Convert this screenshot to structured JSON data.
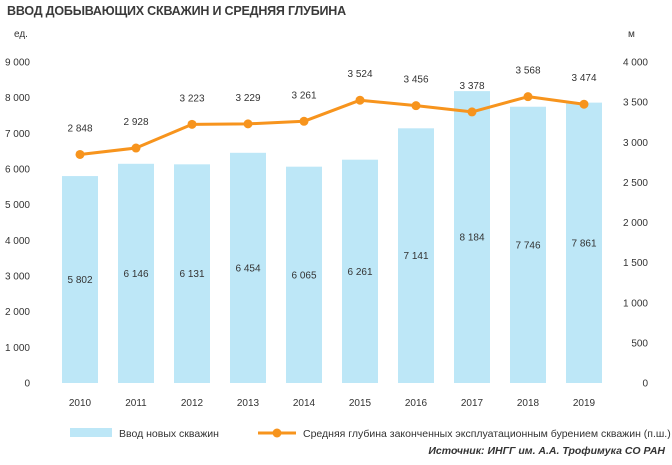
{
  "chart_data": {
    "type": "bar",
    "title": "ВВОД ДОБЫВАЮЩИХ СКВАЖИН И СРЕДНЯЯ ГЛУБИНА",
    "y_left_unit": "ед.",
    "y_right_unit": "м",
    "categories": [
      "2010",
      "2011",
      "2012",
      "2013",
      "2014",
      "2015",
      "2016",
      "2017",
      "2018",
      "2019"
    ],
    "series": [
      {
        "name": "Ввод новых скважин",
        "type": "bar",
        "axis": "left",
        "values": [
          5802,
          6146,
          6131,
          6454,
          6065,
          6261,
          7141,
          8184,
          7746,
          7861
        ],
        "labels": [
          "5 802",
          "6 146",
          "6 131",
          "6 454",
          "6 065",
          "6 261",
          "7 141",
          "8 184",
          "7 746",
          "7 861"
        ],
        "color": "#bde7f7"
      },
      {
        "name": "Средняя глубина законченных эксплуатационным бурением скважин (п.ш.)",
        "type": "line",
        "axis": "right",
        "values": [
          2848,
          2928,
          3223,
          3229,
          3261,
          3524,
          3456,
          3378,
          3568,
          3474
        ],
        "labels": [
          "2 848",
          "2 928",
          "3 223",
          "3 229",
          "3 261",
          "3 524",
          "3 456",
          "3 378",
          "3 568",
          "3 474"
        ],
        "color": "#f7941d"
      }
    ],
    "y_left": {
      "ylim": [
        0,
        9000
      ],
      "ticks": [
        0,
        1000,
        2000,
        3000,
        4000,
        5000,
        6000,
        7000,
        8000,
        9000
      ],
      "tick_labels": [
        "0",
        "1 000",
        "2 000",
        "3 000",
        "4 000",
        "5 000",
        "6 000",
        "7 000",
        "8 000",
        "9 000"
      ]
    },
    "y_right": {
      "ylim": [
        0,
        4000
      ],
      "ticks": [
        0,
        500,
        1000,
        1500,
        2000,
        2500,
        3000,
        3500,
        4000
      ],
      "tick_labels": [
        "0",
        "500",
        "1 000",
        "1 500",
        "2 000",
        "2 500",
        "3 000",
        "3 500",
        "4 000"
      ]
    },
    "grid": false,
    "legend_position": "bottom",
    "source": "Источник: ИНГГ им. А.А. Трофимука СО РАН"
  }
}
